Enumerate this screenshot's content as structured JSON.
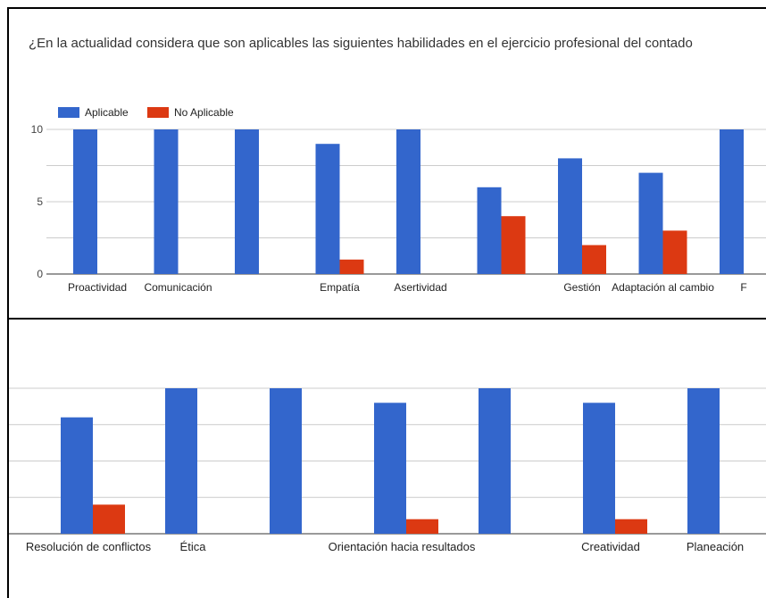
{
  "chart_data": [
    {
      "type": "bar",
      "title": "¿En la actualidad considera que son aplicables las siguientes habilidades en el ejercicio profesional del contado",
      "categories": [
        "Proactividad",
        "Comunicación",
        "",
        "Empatía",
        "Asertividad",
        "",
        "Gestión",
        "Adaptación al cambio",
        "F"
      ],
      "series": [
        {
          "name": "Aplicable",
          "color": "#3366cc",
          "values": [
            10,
            10,
            10,
            9,
            10,
            6,
            8,
            7,
            10
          ]
        },
        {
          "name": "No Aplicable",
          "color": "#dc3912",
          "values": [
            0,
            0,
            0,
            1,
            0,
            4,
            2,
            3,
            null
          ]
        }
      ],
      "yticks": [
        0,
        5,
        10
      ],
      "ylim": [
        0,
        10
      ],
      "legend": "top-left",
      "grid": true
    },
    {
      "type": "bar",
      "title": "",
      "categories": [
        "Resolución de conflictos",
        "Ética",
        "",
        "Orientación hacia resultados",
        "",
        "Creatividad",
        "Planeación"
      ],
      "series": [
        {
          "name": "Aplicable",
          "color": "#3366cc",
          "values": [
            8,
            10,
            10,
            9,
            10,
            9,
            10
          ]
        },
        {
          "name": "No Aplicable",
          "color": "#dc3912",
          "values": [
            2,
            0,
            0,
            1,
            0,
            1,
            0
          ]
        }
      ],
      "ylim": [
        0,
        10
      ],
      "grid": true
    }
  ]
}
